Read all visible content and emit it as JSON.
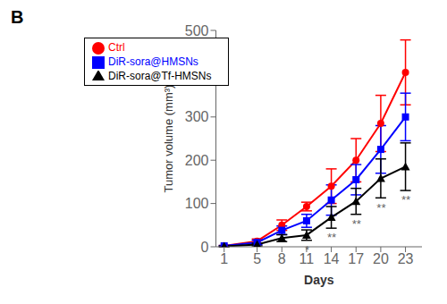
{
  "chart_data": {
    "type": "line",
    "title": "B",
    "x_label": "Days",
    "y_label": "Tumor volume (mm³)",
    "x": [
      1,
      5,
      8,
      11,
      14,
      17,
      20,
      23
    ],
    "series": [
      {
        "name": "Ctrl",
        "color": "#ff0000",
        "marker": "circle",
        "values": [
          2,
          13,
          50,
          93,
          140,
          200,
          285,
          403
        ],
        "errors": [
          1,
          5,
          12,
          10,
          40,
          50,
          65,
          75
        ]
      },
      {
        "name": "DiR-sora@HMSNs",
        "color": "#0000ff",
        "marker": "square",
        "values": [
          2,
          10,
          38,
          60,
          108,
          155,
          225,
          300
        ],
        "errors": [
          1,
          5,
          10,
          15,
          35,
          35,
          55,
          55
        ]
      },
      {
        "name": "DiR-sora@Tf-HMSNs",
        "color": "#000000",
        "marker": "triangle",
        "values": [
          1,
          5,
          20,
          27,
          68,
          105,
          158,
          185
        ],
        "errors": [
          1,
          3,
          8,
          12,
          25,
          30,
          45,
          55
        ]
      }
    ],
    "xlim": [
      0,
      25
    ],
    "xticks": [
      1,
      5,
      8,
      11,
      14,
      17,
      20,
      23
    ],
    "ylim": [
      0,
      500
    ],
    "yticks": [
      0,
      100,
      200,
      300,
      400,
      500
    ],
    "legend": "upper left",
    "grid": false,
    "annotations": [
      {
        "x": 11,
        "text": "*"
      },
      {
        "x": 14,
        "text": "**"
      },
      {
        "x": 17,
        "text": "**"
      },
      {
        "x": 20,
        "text": "**"
      },
      {
        "x": 23,
        "text": "**"
      }
    ]
  }
}
